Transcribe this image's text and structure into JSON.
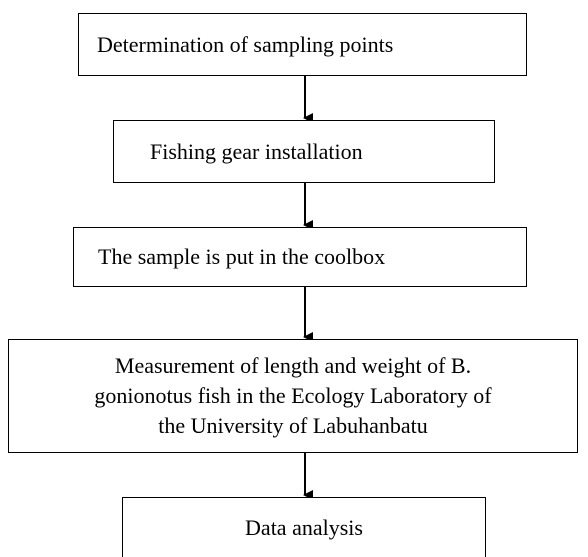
{
  "nodes": [
    {
      "label": "Determination of sampling points"
    },
    {
      "label": "Fishing gear installation"
    },
    {
      "label": "The sample is put in the coolbox"
    },
    {
      "lines": [
        "Measurement of length and weight of B.",
        "gonionotus fish in the Ecology Laboratory of",
        "the University of Labuhanbatu"
      ]
    },
    {
      "label": "Data analysis"
    }
  ]
}
